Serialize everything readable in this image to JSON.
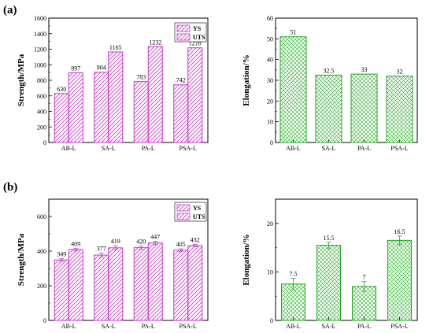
{
  "panels": [
    {
      "label": "(a)"
    },
    {
      "label": "(b)"
    }
  ],
  "colors": {
    "strength": "#cc33cc",
    "elongation": "#22aa22",
    "axis": "#000000"
  },
  "chart_data": [
    {
      "type": "bar",
      "panel": "(a)",
      "categories": [
        "AB-L",
        "SA-L",
        "PA-L",
        "PSA-L"
      ],
      "series": [
        {
          "name": "YS",
          "values": [
            630,
            904,
            783,
            742
          ],
          "labels": [
            "630",
            "904",
            "783",
            "742"
          ]
        },
        {
          "name": "UTS",
          "values": [
            897,
            1165,
            1232,
            1218
          ],
          "labels": [
            "897",
            "1165",
            "1232",
            "1218"
          ]
        }
      ],
      "ylabel": "Strength/MPa",
      "ylim": [
        0,
        1600
      ],
      "yticks": [
        0,
        200,
        400,
        600,
        800,
        1000,
        1200,
        1400,
        1600
      ],
      "legend": "top-right",
      "hatch": "diagonal"
    },
    {
      "type": "bar",
      "panel": "(a)",
      "categories": [
        "AB-L",
        "SA-L",
        "PA-L",
        "PSA-L"
      ],
      "series": [
        {
          "values": [
            51,
            32.5,
            33,
            32
          ],
          "labels": [
            "51",
            "32.5",
            "33",
            "32"
          ]
        }
      ],
      "ylabel": "Elongation/%",
      "ylim": [
        0,
        60
      ],
      "yticks": [
        0,
        10,
        20,
        30,
        40,
        50,
        60
      ],
      "hatch": "crosshatch"
    },
    {
      "type": "bar",
      "panel": "(b)",
      "categories": [
        "AB-L",
        "SA-L",
        "PA-L",
        "PSA-L"
      ],
      "series": [
        {
          "name": "YS",
          "values": [
            349,
            377,
            420,
            405
          ],
          "labels": [
            "349",
            "377",
            "420",
            "405"
          ],
          "errors": [
            8,
            12,
            10,
            8
          ]
        },
        {
          "name": "UTS",
          "values": [
            409,
            419,
            447,
            432
          ],
          "labels": [
            "409",
            "419",
            "447",
            "432"
          ],
          "errors": [
            8,
            12,
            10,
            6
          ]
        }
      ],
      "ylabel": "Strength/MPa",
      "ylim": [
        0,
        700
      ],
      "yticks": [
        0,
        200,
        400,
        600
      ],
      "legend": "top-right",
      "hatch": "diagonal"
    },
    {
      "type": "bar",
      "panel": "(b)",
      "categories": [
        "AB-L",
        "SA-L",
        "PA-L",
        "PSA-L"
      ],
      "series": [
        {
          "values": [
            7.5,
            15.5,
            7,
            16.5
          ],
          "labels": [
            "7.5",
            "15.5",
            "7",
            "16.5"
          ],
          "errors": [
            1.2,
            0.6,
            1.0,
            0.9
          ]
        }
      ],
      "ylabel": "Elongation/%",
      "ylim": [
        0,
        25
      ],
      "yticks": [
        0,
        10,
        20
      ],
      "hatch": "crosshatch"
    }
  ]
}
